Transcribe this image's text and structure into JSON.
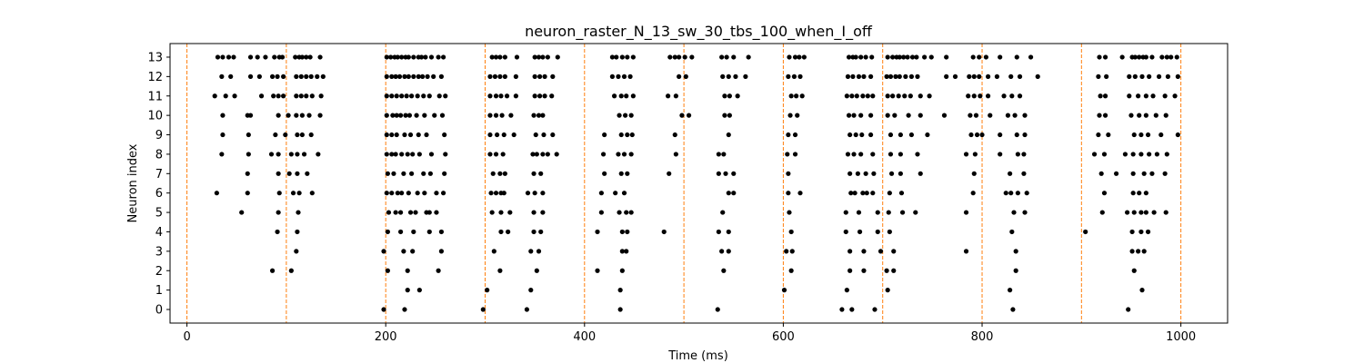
{
  "chart_data": {
    "type": "scatter",
    "title": "neuron_raster_N_13_sw_30_tbs_100_when_I_off",
    "xlabel": "Time (ms)",
    "ylabel": "Neuron index",
    "xlim": [
      -17,
      1047
    ],
    "ylim": [
      -0.7,
      13.7
    ],
    "xticks": [
      0,
      200,
      400,
      600,
      800,
      1000
    ],
    "yticks": [
      0,
      1,
      2,
      3,
      4,
      5,
      6,
      7,
      8,
      9,
      10,
      11,
      12,
      13
    ],
    "grid": false,
    "marker_color": "#000000",
    "vline_color": "#ff7f0e",
    "vlines": [
      0,
      100,
      200,
      300,
      400,
      500,
      600,
      700,
      800,
      900,
      1000
    ],
    "series": [
      {
        "neuron": 0,
        "times": [
          198,
          219,
          298,
          342,
          436,
          534,
          659,
          669,
          692,
          831,
          947
        ]
      },
      {
        "neuron": 1,
        "times": [
          222,
          234,
          302,
          346,
          436,
          601,
          664,
          705,
          828,
          961
        ]
      },
      {
        "neuron": 2,
        "times": [
          86,
          105,
          202,
          222,
          253,
          315,
          352,
          413,
          438,
          540,
          608,
          667,
          681,
          704,
          711,
          834,
          953
        ]
      },
      {
        "neuron": 3,
        "times": [
          110,
          198,
          218,
          227,
          256,
          309,
          346,
          354,
          438,
          442,
          538,
          545,
          603,
          609,
          667,
          681,
          698,
          711,
          784,
          834,
          951,
          957,
          963
        ]
      },
      {
        "neuron": 4,
        "times": [
          91,
          111,
          202,
          215,
          228,
          244,
          256,
          316,
          323,
          349,
          356,
          413,
          438,
          443,
          480,
          535,
          545,
          608,
          663,
          677,
          695,
          707,
          830,
          904,
          951,
          960,
          967
        ]
      },
      {
        "neuron": 5,
        "times": [
          55,
          92,
          112,
          203,
          210,
          215,
          225,
          230,
          241,
          244,
          251,
          307,
          316,
          325,
          349,
          358,
          417,
          435,
          442,
          447,
          539,
          606,
          663,
          676,
          695,
          706,
          720,
          733,
          784,
          832,
          843,
          921,
          946,
          953,
          960,
          965,
          973,
          985
        ]
      },
      {
        "neuron": 6,
        "times": [
          30,
          61,
          93,
          107,
          113,
          126,
          201,
          206,
          212,
          216,
          223,
          232,
          239,
          251,
          258,
          306,
          311,
          316,
          319,
          343,
          350,
          358,
          417,
          431,
          440,
          545,
          550,
          605,
          617,
          668,
          672,
          680,
          684,
          690,
          707,
          719,
          791,
          824,
          829,
          836,
          845,
          923,
          952,
          958,
          965
        ]
      },
      {
        "neuron": 7,
        "times": [
          61,
          92,
          103,
          111,
          121,
          202,
          208,
          218,
          226,
          238,
          245,
          259,
          308,
          315,
          320,
          349,
          356,
          420,
          437,
          443,
          485,
          535,
          542,
          550,
          605,
          667,
          675,
          683,
          691,
          709,
          718,
          738,
          792,
          828,
          842,
          920,
          935,
          952,
          963,
          971,
          984
        ]
      },
      {
        "neuron": 8,
        "times": [
          35,
          62,
          85,
          92,
          105,
          111,
          118,
          132,
          201,
          206,
          210,
          216,
          222,
          227,
          234,
          246,
          260,
          305,
          311,
          318,
          348,
          352,
          358,
          363,
          372,
          419,
          434,
          440,
          447,
          492,
          535,
          540,
          604,
          612,
          665,
          671,
          678,
          690,
          708,
          718,
          735,
          784,
          793,
          818,
          836,
          842,
          913,
          923,
          944,
          952,
          960,
          968,
          976,
          986
        ]
      },
      {
        "neuron": 9,
        "times": [
          36,
          62,
          89,
          99,
          111,
          116,
          125,
          201,
          206,
          211,
          219,
          225,
          233,
          241,
          259,
          305,
          312,
          319,
          329,
          351,
          359,
          368,
          420,
          437,
          443,
          448,
          491,
          545,
          605,
          612,
          667,
          673,
          679,
          688,
          708,
          718,
          729,
          745,
          789,
          795,
          800,
          818,
          835,
          843,
          917,
          927,
          953,
          960,
          967,
          980,
          997
        ]
      },
      {
        "neuron": 10,
        "times": [
          36,
          61,
          64,
          92,
          102,
          110,
          116,
          123,
          134,
          201,
          207,
          211,
          215,
          220,
          224,
          231,
          239,
          249,
          257,
          305,
          311,
          317,
          326,
          349,
          354,
          358,
          435,
          441,
          447,
          498,
          505,
          541,
          546,
          607,
          614,
          666,
          671,
          678,
          688,
          705,
          712,
          726,
          738,
          762,
          788,
          794,
          808,
          826,
          833,
          843,
          918,
          924,
          950,
          958,
          965,
          975,
          985
        ]
      },
      {
        "neuron": 11,
        "times": [
          28,
          39,
          48,
          75,
          87,
          92,
          97,
          110,
          115,
          120,
          126,
          135,
          201,
          206,
          211,
          216,
          221,
          226,
          232,
          238,
          244,
          254,
          260,
          305,
          311,
          316,
          322,
          331,
          350,
          355,
          360,
          367,
          430,
          437,
          442,
          449,
          484,
          492,
          541,
          546,
          554,
          608,
          613,
          619,
          664,
          669,
          674,
          680,
          685,
          690,
          705,
          710,
          716,
          722,
          728,
          738,
          747,
          786,
          792,
          798,
          806,
          822,
          830,
          838,
          919,
          924,
          948,
          957,
          965,
          972,
          984,
          994
        ]
      },
      {
        "neuron": 12,
        "times": [
          35,
          44,
          64,
          73,
          86,
          91,
          97,
          110,
          115,
          120,
          125,
          131,
          137,
          201,
          206,
          210,
          214,
          219,
          223,
          228,
          233,
          237,
          242,
          248,
          256,
          305,
          310,
          315,
          320,
          331,
          350,
          355,
          360,
          368,
          428,
          434,
          440,
          446,
          495,
          502,
          539,
          545,
          552,
          562,
          605,
          611,
          617,
          665,
          670,
          676,
          681,
          688,
          704,
          708,
          713,
          717,
          723,
          729,
          735,
          764,
          773,
          787,
          792,
          797,
          806,
          815,
          829,
          838,
          856,
          917,
          925,
          948,
          954,
          961,
          968,
          978,
          987,
          997
        ]
      },
      {
        "neuron": 13,
        "times": [
          31,
          36,
          42,
          47,
          64,
          71,
          79,
          88,
          93,
          96,
          109,
          113,
          116,
          120,
          124,
          134,
          201,
          205,
          209,
          212,
          216,
          220,
          223,
          228,
          233,
          236,
          240,
          246,
          253,
          258,
          307,
          311,
          315,
          320,
          332,
          350,
          354,
          358,
          363,
          373,
          428,
          432,
          438,
          443,
          449,
          486,
          491,
          495,
          501,
          508,
          538,
          543,
          550,
          565,
          606,
          612,
          616,
          621,
          666,
          670,
          673,
          678,
          683,
          689,
          705,
          710,
          714,
          717,
          721,
          725,
          730,
          734,
          742,
          749,
          764,
          791,
          797,
          804,
          818,
          835,
          849,
          918,
          924,
          941,
          951,
          954,
          958,
          962,
          965,
          971,
          981,
          986,
          990,
          996
        ]
      }
    ]
  }
}
